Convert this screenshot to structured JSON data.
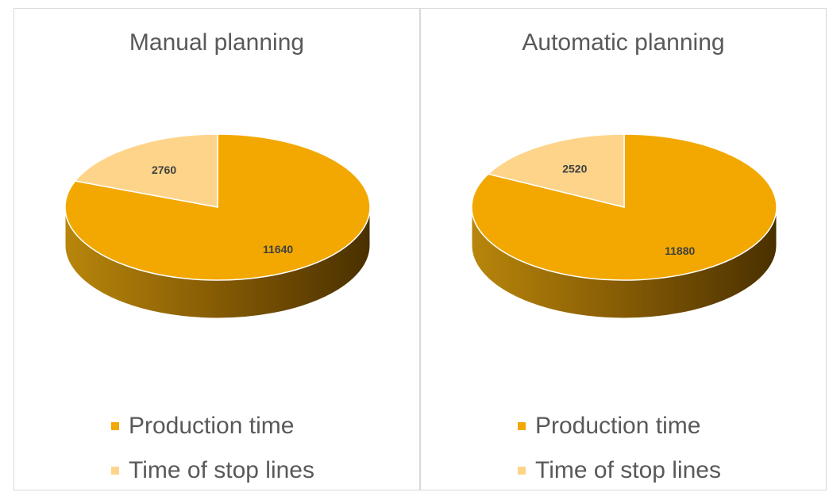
{
  "colors": {
    "production": "#f2a800",
    "stop": "#fdd48a"
  },
  "chart_data": [
    {
      "type": "pie",
      "title": "Manual planning",
      "labels": [
        "Production time",
        "Time of stop lines"
      ],
      "values": [
        11640,
        2760
      ],
      "legend": "bottom"
    },
    {
      "type": "pie",
      "title": "Automatic planning",
      "labels": [
        "Production time",
        "Time of stop lines"
      ],
      "values": [
        11880,
        2520
      ],
      "legend": "bottom"
    }
  ]
}
